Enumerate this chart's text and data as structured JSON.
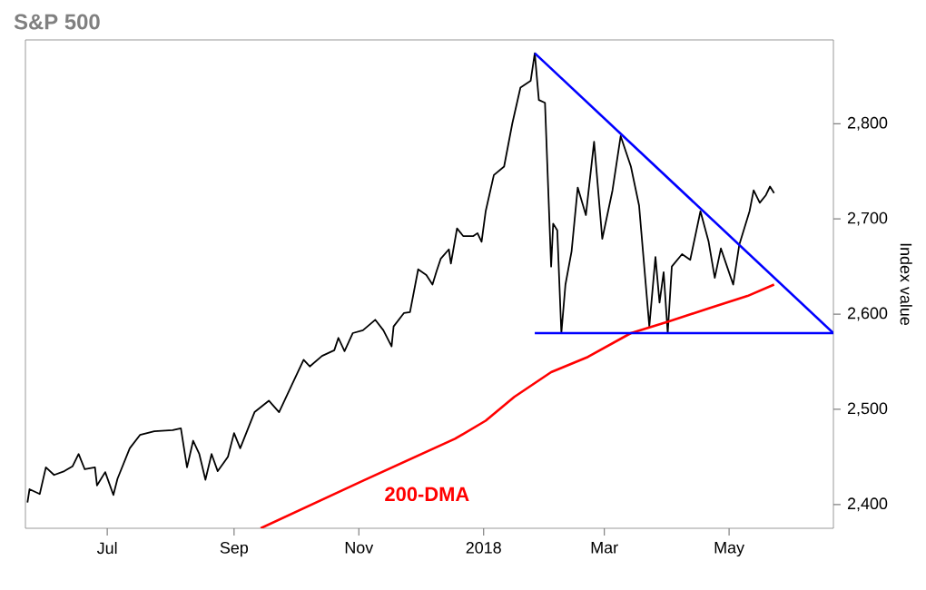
{
  "chart_data": {
    "type": "line",
    "title": "S&P 500",
    "ylabel": "Index value",
    "xlim": [
      "2017-05-22",
      "2018-06-21"
    ],
    "ylim": [
      2375,
      2888
    ],
    "xticks": [
      {
        "value": "2017-07-01",
        "label": "Jul"
      },
      {
        "value": "2017-09-01",
        "label": "Sep"
      },
      {
        "value": "2017-11-01",
        "label": "Nov"
      },
      {
        "value": "2018-01-01",
        "label": "2018"
      },
      {
        "value": "2018-03-01",
        "label": "Mar"
      },
      {
        "value": "2018-05-01",
        "label": "May"
      }
    ],
    "yticks": [
      {
        "value": 2400,
        "label": "2,400"
      },
      {
        "value": 2500,
        "label": "2,500"
      },
      {
        "value": 2600,
        "label": "2,600"
      },
      {
        "value": 2700,
        "label": "2,700"
      },
      {
        "value": 2800,
        "label": "2,800"
      }
    ],
    "annotations": [
      "200-DMA"
    ],
    "series": [
      {
        "color": "#000000",
        "x": [
          "2017-05-23",
          "2017-05-24",
          "2017-05-29",
          "2017-06-01",
          "2017-06-05",
          "2017-06-10",
          "2017-06-14",
          "2017-06-17",
          "2017-06-20",
          "2017-06-25",
          "2017-06-26",
          "2017-06-30",
          "2017-07-04",
          "2017-07-06",
          "2017-07-12",
          "2017-07-17",
          "2017-07-24",
          "2017-08-02",
          "2017-08-06",
          "2017-08-09",
          "2017-08-12",
          "2017-08-15",
          "2017-08-18",
          "2017-08-21",
          "2017-08-24",
          "2017-08-29",
          "2017-09-01",
          "2017-09-04",
          "2017-09-11",
          "2017-09-18",
          "2017-09-23",
          "2017-09-30",
          "2017-10-05",
          "2017-10-08",
          "2017-10-14",
          "2017-10-20",
          "2017-10-22",
          "2017-10-25",
          "2017-10-29",
          "2017-11-03",
          "2017-11-09",
          "2017-11-13",
          "2017-11-17",
          "2017-11-18",
          "2017-11-23",
          "2017-11-26",
          "2017-11-30",
          "2017-12-04",
          "2017-12-07",
          "2017-12-09",
          "2017-12-11",
          "2017-12-15",
          "2017-12-16",
          "2017-12-19",
          "2017-12-22",
          "2017-12-27",
          "2017-12-29",
          "2017-12-31",
          "2018-01-02",
          "2018-01-06",
          "2018-01-11",
          "2018-01-15",
          "2018-01-19",
          "2018-01-24",
          "2018-01-26",
          "2018-01-28",
          "2018-01-31",
          "2018-02-03",
          "2018-02-04",
          "2018-02-06",
          "2018-02-08",
          "2018-02-10",
          "2018-02-13",
          "2018-02-16",
          "2018-02-20",
          "2018-02-24",
          "2018-02-28",
          "2018-03-05",
          "2018-03-09",
          "2018-03-14",
          "2018-03-18",
          "2018-03-23",
          "2018-03-26",
          "2018-03-28",
          "2018-03-30",
          "2018-04-01",
          "2018-04-03",
          "2018-04-08",
          "2018-04-12",
          "2018-04-17",
          "2018-04-21",
          "2018-04-24",
          "2018-04-27",
          "2018-04-30",
          "2018-05-03",
          "2018-05-06",
          "2018-05-11",
          "2018-05-13",
          "2018-05-16",
          "2018-05-19",
          "2018-05-21",
          "2018-05-23"
        ],
        "values": [
          2402,
          2416,
          2411,
          2439,
          2431,
          2435,
          2440,
          2453,
          2437,
          2439,
          2420,
          2434,
          2410,
          2427,
          2459,
          2473,
          2477,
          2478,
          2480,
          2439,
          2467,
          2453,
          2426,
          2453,
          2435,
          2450,
          2475,
          2459,
          2497,
          2509,
          2497,
          2529,
          2552,
          2545,
          2556,
          2562,
          2575,
          2561,
          2580,
          2583,
          2594,
          2583,
          2566,
          2587,
          2601,
          2602,
          2647,
          2641,
          2631,
          2645,
          2658,
          2668,
          2653,
          2690,
          2682,
          2682,
          2685,
          2676,
          2708,
          2746,
          2755,
          2800,
          2838,
          2845,
          2874,
          2825,
          2822,
          2650,
          2695,
          2688,
          2580,
          2631,
          2666,
          2733,
          2704,
          2781,
          2679,
          2730,
          2787,
          2755,
          2714,
          2587,
          2660,
          2612,
          2644,
          2580,
          2650,
          2663,
          2657,
          2708,
          2676,
          2638,
          2669,
          2650,
          2631,
          2673,
          2708,
          2730,
          2717,
          2725,
          2734,
          2727
        ]
      },
      {
        "color": "#ff0000",
        "x": [
          "2017-09-14",
          "2017-11-03",
          "2017-12-18",
          "2018-01-02",
          "2018-01-16",
          "2018-02-03",
          "2018-02-21",
          "2018-03-14",
          "2018-04-01",
          "2018-04-21",
          "2018-05-10",
          "2018-05-23"
        ],
        "values": [
          2375,
          2425,
          2469,
          2488,
          2513,
          2539,
          2555,
          2580,
          2592,
          2606,
          2619,
          2631
        ]
      },
      {
        "color": "#0000ff",
        "x": [
          "2018-01-26",
          "2018-06-21"
        ],
        "values": [
          2874,
          2580
        ]
      },
      {
        "color": "#0000ff",
        "x": [
          "2018-01-26",
          "2018-06-21"
        ],
        "values": [
          2580,
          2580
        ]
      }
    ]
  }
}
